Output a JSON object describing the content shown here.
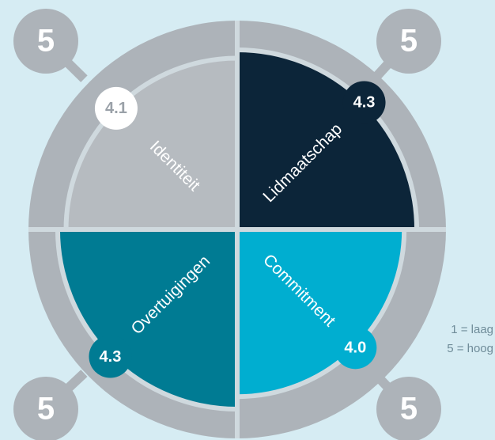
{
  "chart_data": {
    "type": "polar",
    "categories": [
      "Identiteit",
      "Lidmaatschap",
      "Overtuigingen",
      "Commitment"
    ],
    "values": [
      4.1,
      4.3,
      4.3,
      4.0
    ],
    "value_labels": [
      "4.1",
      "4.3",
      "4.3",
      "4.0"
    ],
    "colors": [
      "#b6bbc0",
      "#0c2539",
      "#007b93",
      "#00aed0"
    ],
    "rlim": [
      0,
      5
    ],
    "notes": [
      "1 = laag",
      "5 = hoog"
    ]
  }
}
